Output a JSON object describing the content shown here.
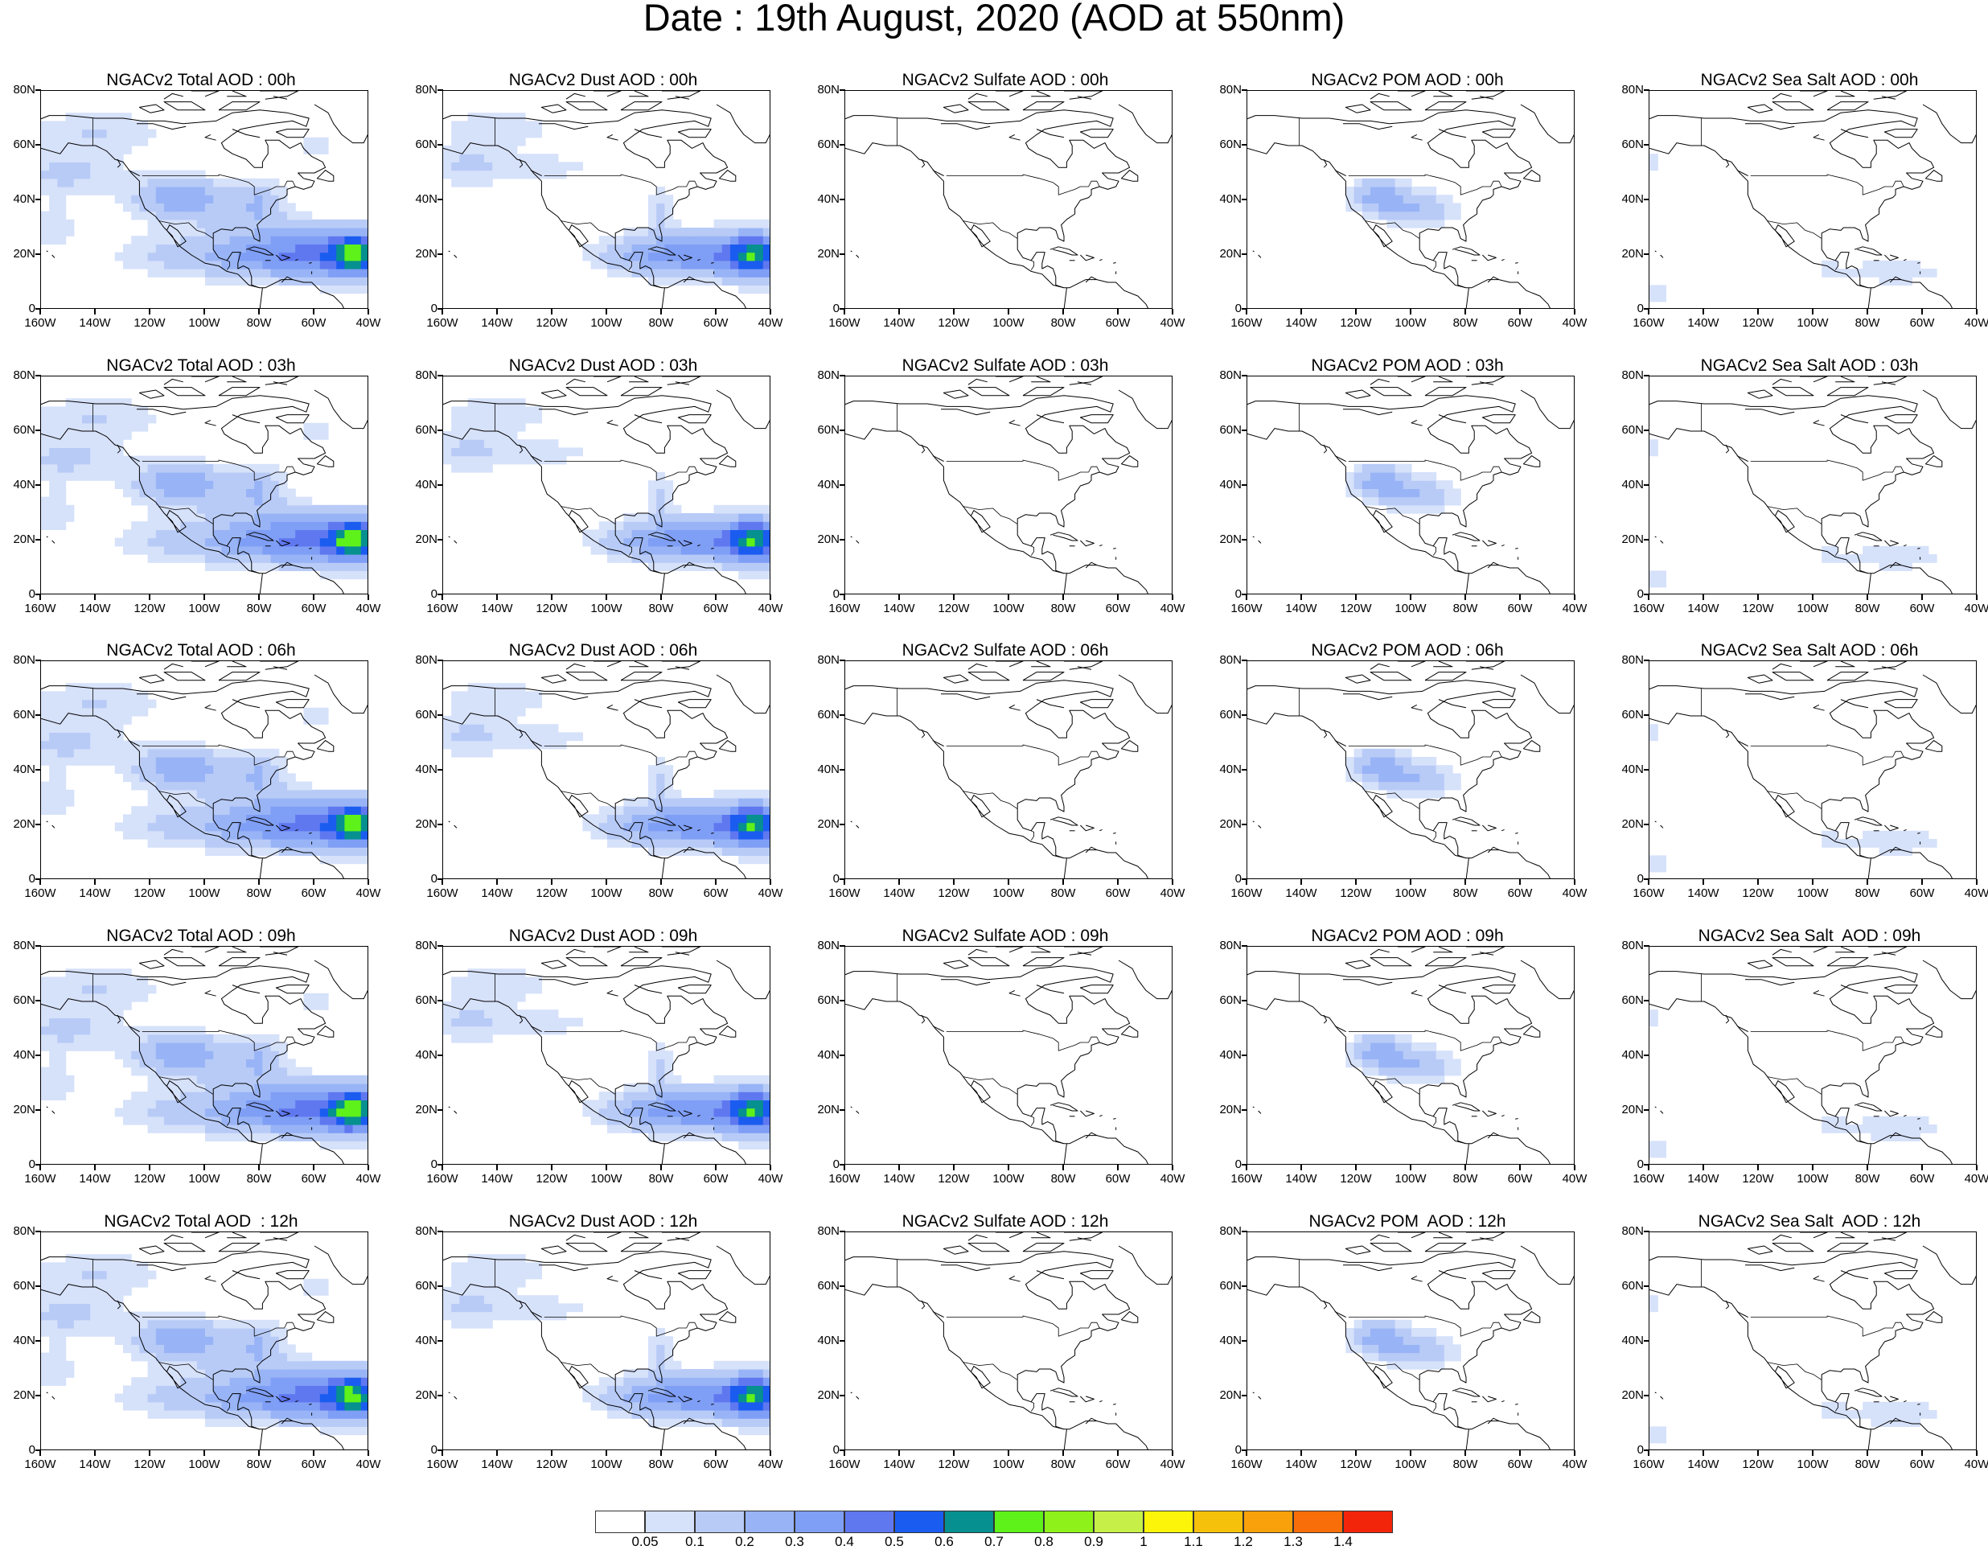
{
  "title": "Date : 19th August, 2020 (AOD at 550nm)",
  "axes": {
    "y_ticks": [
      "80N",
      "60N",
      "40N",
      "20N",
      "0"
    ],
    "x_ticks": [
      "160W",
      "140W",
      "120W",
      "100W",
      "80W",
      "60W",
      "40W"
    ],
    "lon_range": [
      -160,
      -40
    ],
    "lat_range": [
      0,
      80
    ]
  },
  "panels": [
    [
      {
        "title": "NGACv2 Total AOD : 00h",
        "field": "total",
        "hour": 0
      },
      {
        "title": "NGACv2 Dust AOD : 00h",
        "field": "dust",
        "hour": 0
      },
      {
        "title": "NGACv2 Sulfate AOD : 00h",
        "field": "sulfate",
        "hour": 0
      },
      {
        "title": "NGACv2 POM AOD : 00h",
        "field": "pom",
        "hour": 0
      },
      {
        "title": "NGACv2 Sea Salt AOD : 00h",
        "field": "seasalt",
        "hour": 0
      }
    ],
    [
      {
        "title": "NGACv2 Total AOD : 03h",
        "field": "total",
        "hour": 3
      },
      {
        "title": "NGACv2 Dust AOD : 03h",
        "field": "dust",
        "hour": 3
      },
      {
        "title": "NGACv2 Sulfate AOD : 03h",
        "field": "sulfate",
        "hour": 3
      },
      {
        "title": "NGACv2 POM AOD : 03h",
        "field": "pom",
        "hour": 3
      },
      {
        "title": "NGACv2 Sea Salt AOD : 03h",
        "field": "seasalt",
        "hour": 3
      }
    ],
    [
      {
        "title": "NGACv2 Total AOD : 06h",
        "field": "total",
        "hour": 6
      },
      {
        "title": "NGACv2 Dust AOD : 06h",
        "field": "dust",
        "hour": 6
      },
      {
        "title": "NGACv2 Sulfate AOD : 06h",
        "field": "sulfate",
        "hour": 6
      },
      {
        "title": "NGACv2 POM AOD : 06h",
        "field": "pom",
        "hour": 6
      },
      {
        "title": "NGACv2 Sea Salt AOD : 06h",
        "field": "seasalt",
        "hour": 6
      }
    ],
    [
      {
        "title": "NGACv2 Total AOD : 09h",
        "field": "total",
        "hour": 9
      },
      {
        "title": "NGACv2 Dust AOD : 09h",
        "field": "dust",
        "hour": 9
      },
      {
        "title": "NGACv2 Sulfate AOD : 09h",
        "field": "sulfate",
        "hour": 9
      },
      {
        "title": "NGACv2 POM AOD : 09h",
        "field": "pom",
        "hour": 9
      },
      {
        "title": "NGACv2 Sea Salt  AOD : 09h",
        "field": "seasalt",
        "hour": 9
      }
    ],
    [
      {
        "title": "NGACv2 Total AOD  : 12h",
        "field": "total",
        "hour": 12
      },
      {
        "title": "NGACv2 Dust AOD : 12h",
        "field": "dust",
        "hour": 12
      },
      {
        "title": "NGACv2 Sulfate AOD : 12h",
        "field": "sulfate",
        "hour": 12
      },
      {
        "title": "NGACv2 POM  AOD : 12h",
        "field": "pom",
        "hour": 12
      },
      {
        "title": "NGACv2 Sea Salt  AOD : 12h",
        "field": "seasalt",
        "hour": 12
      }
    ]
  ],
  "colorbar": {
    "labels": [
      "0.05",
      "0.1",
      "0.2",
      "0.3",
      "0.4",
      "0.5",
      "0.6",
      "0.7",
      "0.8",
      "0.9",
      "1",
      "1.1",
      "1.2",
      "1.3",
      "1.4"
    ],
    "colors": [
      "#ffffff",
      "#d6e1fa",
      "#b8cbf7",
      "#98b4f6",
      "#7f9ef5",
      "#5f78f0",
      "#1b5cf0",
      "#06908f",
      "#5ef21a",
      "#8ef21a",
      "#c6f048",
      "#fcf50a",
      "#f6c10b",
      "#f8a10a",
      "#f86f0a",
      "#f2250b"
    ]
  }
}
